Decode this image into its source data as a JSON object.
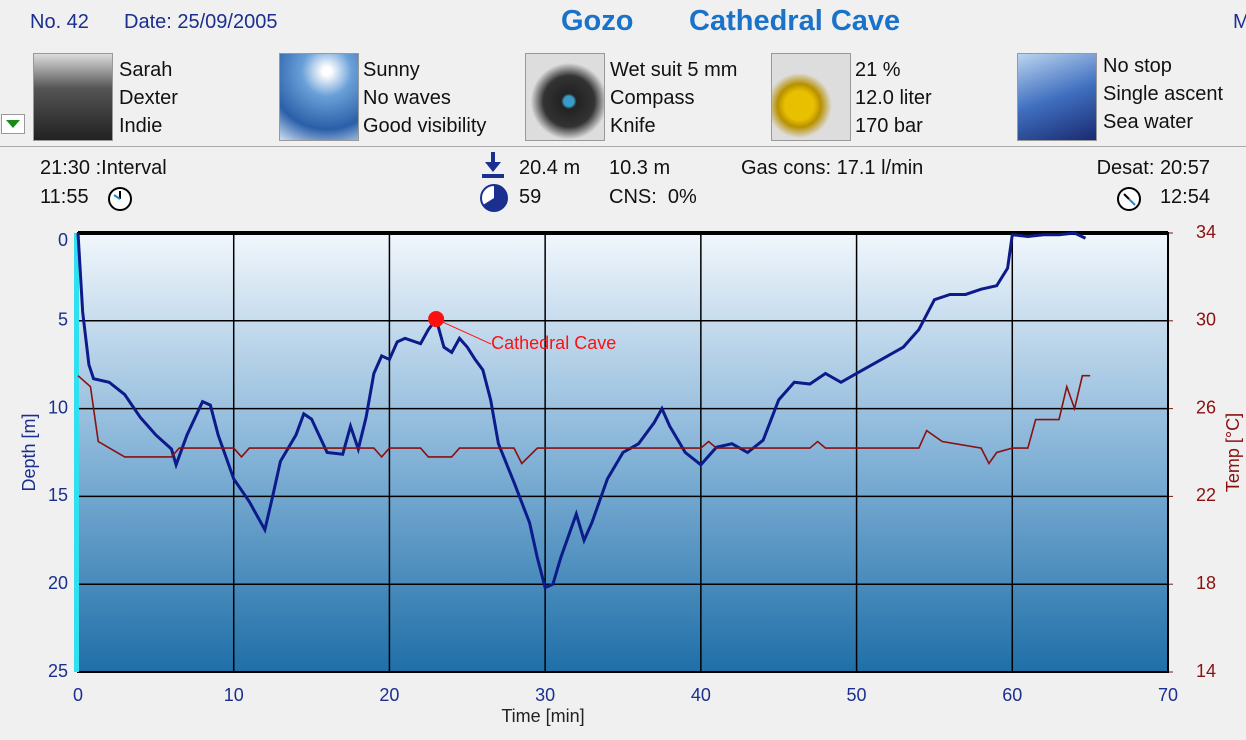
{
  "header": {
    "number": "No. 42",
    "date": "Date: 25/09/2005",
    "location": "Gozo",
    "site": "Cathedral Cave",
    "cut": "M"
  },
  "panels": [
    {
      "lines": [
        "Sarah",
        "Dexter",
        "Indie"
      ]
    },
    {
      "lines": [
        "Sunny",
        "No waves",
        "Good visibility"
      ]
    },
    {
      "lines": [
        "Wet suit 5 mm",
        "Compass",
        "Knife"
      ]
    },
    {
      "lines": [
        "21 %",
        "12.0 liter",
        "170 bar"
      ]
    },
    {
      "lines": [
        "No stop",
        "Single ascent",
        "Sea water"
      ]
    }
  ],
  "stats": {
    "interval": "21:30 :Interval",
    "entry_time": "11:55",
    "max_depth": "20.4 m",
    "avg_depth": "10.3 m",
    "duration": "59",
    "cns": "CNS:  0%",
    "gas": "Gas cons: 17.1 l/min",
    "desat": "Desat: 20:57",
    "exit_time": "12:54"
  },
  "chart_data": {
    "type": "line",
    "ylabel": "Depth [m]",
    "y2label": "Temp [°C]",
    "xlabel": "Time [min]",
    "xlim": [
      0,
      70
    ],
    "xticks": [
      0,
      10,
      20,
      30,
      40,
      50,
      60,
      70
    ],
    "ylim": [
      25,
      0
    ],
    "yticks": [
      0,
      5,
      10,
      15,
      20,
      25
    ],
    "y2lim": [
      14,
      34
    ],
    "y2ticks": [
      14,
      18,
      22,
      26,
      30,
      34
    ],
    "grid": true,
    "series": [
      {
        "color": "#0c1a8a",
        "axis": "y",
        "x": [
          0,
          0.3,
          0.7,
          1,
          2,
          3,
          4,
          5,
          6,
          6.3,
          7,
          8,
          8.5,
          9,
          10,
          11,
          12,
          12.5,
          13,
          14,
          14.5,
          15,
          16,
          17,
          17.5,
          18,
          18.5,
          19,
          19.5,
          20,
          20.5,
          21,
          22,
          22.5,
          23,
          23.5,
          24,
          24.5,
          25,
          25.5,
          26,
          26.5,
          27,
          28,
          29,
          29.5,
          30,
          30.5,
          31,
          32,
          32.5,
          33,
          34,
          35,
          36,
          37,
          37.5,
          38,
          39,
          40,
          41,
          42,
          43,
          44,
          45,
          46,
          47,
          48,
          49,
          50,
          51,
          52,
          53,
          54,
          55,
          56,
          57,
          58,
          59,
          59.7,
          60,
          61,
          62,
          63,
          64,
          64.7
        ],
        "values": [
          0,
          4.5,
          7.5,
          8.3,
          8.5,
          9.2,
          10.5,
          11.5,
          12.3,
          13.2,
          11.5,
          9.6,
          9.8,
          11.5,
          14,
          15.3,
          16.9,
          15,
          13,
          11.5,
          10.3,
          10.6,
          12.5,
          12.6,
          11,
          12.3,
          10.5,
          8,
          7,
          7.2,
          6.2,
          6,
          6.3,
          5.5,
          4.9,
          6.5,
          6.8,
          6,
          6.5,
          7.2,
          7.8,
          9.5,
          12,
          14.2,
          16.5,
          18.5,
          20.2,
          20,
          18.5,
          16,
          17.5,
          16.5,
          14,
          12.5,
          12,
          10.8,
          10,
          11,
          12.5,
          13.2,
          12.2,
          12,
          12.5,
          11.8,
          9.5,
          8.5,
          8.6,
          8,
          8.5,
          8,
          7.5,
          7,
          6.5,
          5.5,
          3.8,
          3.5,
          3.5,
          3.2,
          3,
          2,
          0.1,
          0.2,
          0.1,
          0.1,
          0,
          0.3
        ]
      },
      {
        "color": "#8b1010",
        "axis": "y2",
        "x": [
          0,
          0.8,
          1.3,
          3,
          6,
          6.5,
          10,
          10.5,
          11,
          19,
          19.5,
          20,
          22,
          22.5,
          24,
          24.5,
          28,
          28.5,
          29.5,
          40,
          40.5,
          41,
          47,
          47.5,
          48,
          54,
          54.5,
          55.5,
          58,
          58.5,
          59,
          60,
          61,
          61.5,
          63,
          63.5,
          64,
          64.5,
          65
        ],
        "values": [
          27.5,
          27,
          24.5,
          23.8,
          23.8,
          24.2,
          24.2,
          23.8,
          24.2,
          24.2,
          23.8,
          24.2,
          24.2,
          23.8,
          23.8,
          24.2,
          24.2,
          23.5,
          24.2,
          24.2,
          24.5,
          24.2,
          24.2,
          24.5,
          24.2,
          24.2,
          25,
          24.5,
          24.2,
          23.5,
          24,
          24.2,
          24.2,
          25.5,
          25.5,
          27,
          26,
          27.5,
          27.5
        ]
      }
    ],
    "annotation": {
      "text": "Cathedral Cave",
      "x": 23,
      "y": 4.9,
      "color": "#ff1010"
    }
  }
}
